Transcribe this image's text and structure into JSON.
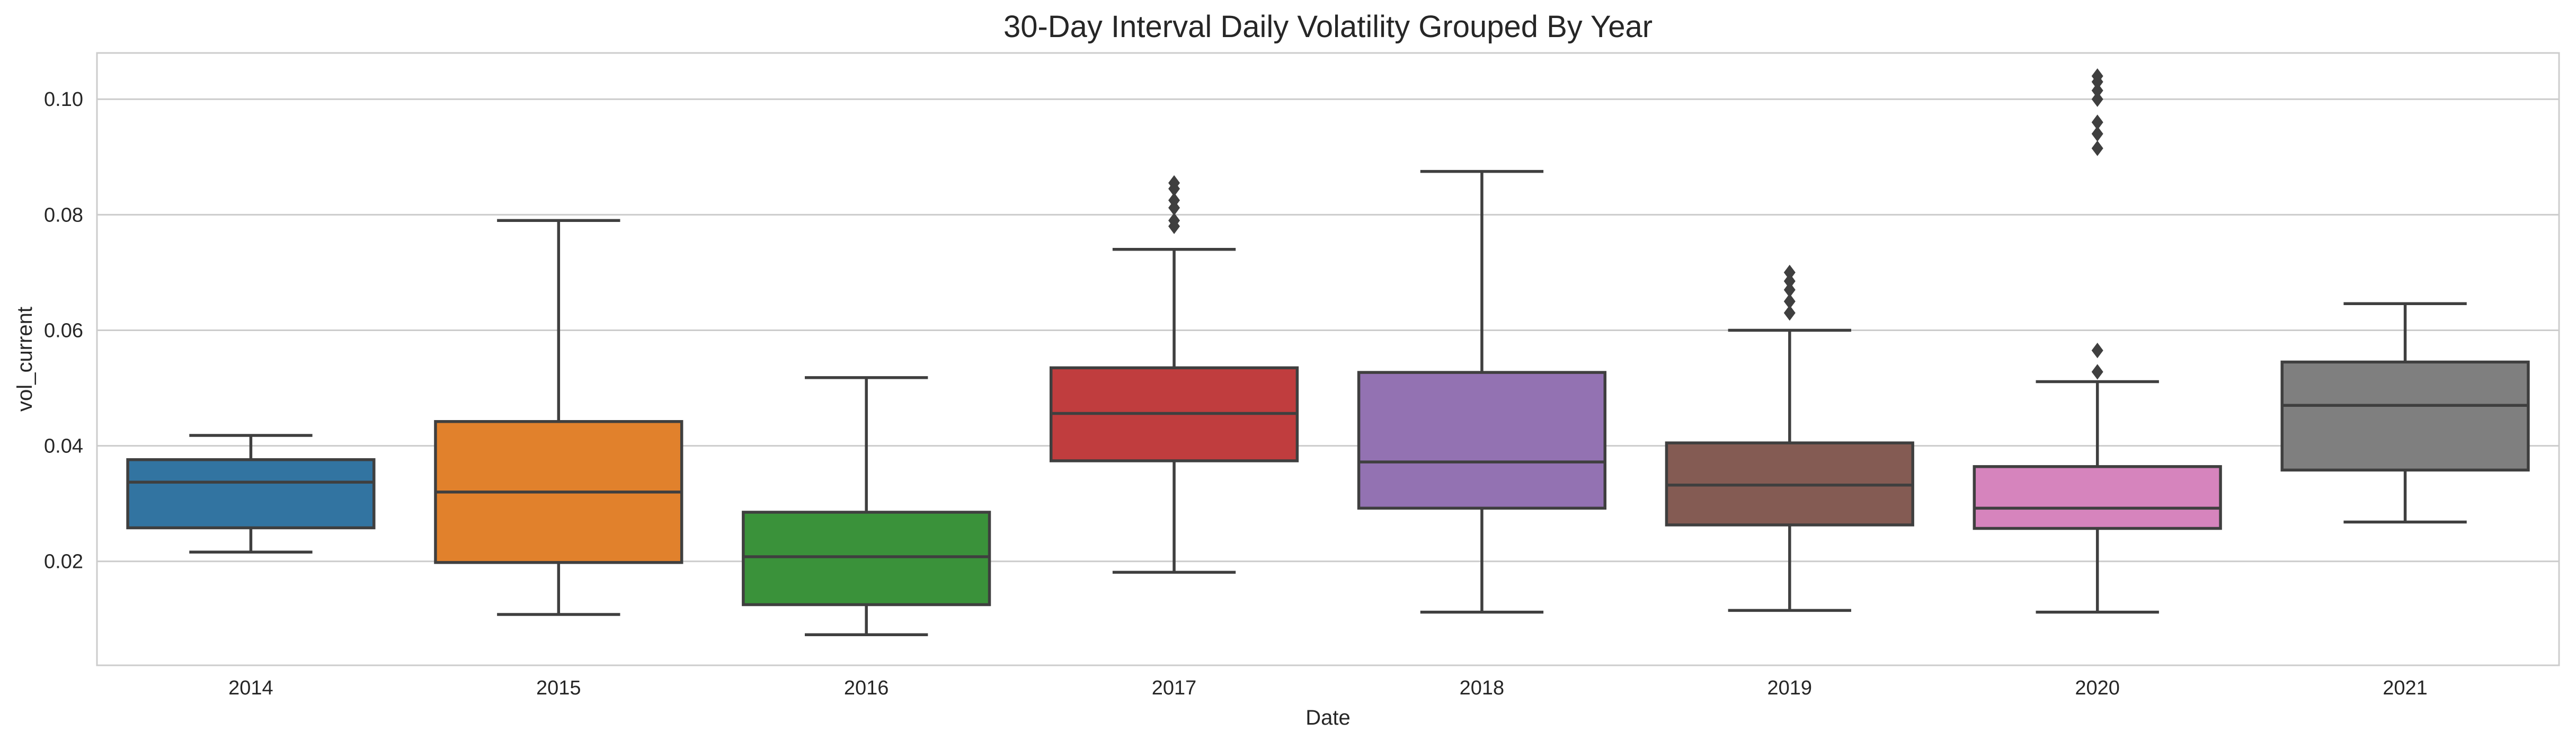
{
  "chart_data": {
    "type": "box",
    "title": "30-Day Interval Daily Volatility Grouped By Year",
    "xlabel": "Date",
    "ylabel": "vol_current",
    "ylim": [
      0.002,
      0.108
    ],
    "yticks": [
      "0.02",
      "0.04",
      "0.06",
      "0.08",
      "0.10"
    ],
    "ytick_values": [
      0.02,
      0.04,
      0.06,
      0.08,
      0.1
    ],
    "grid": "horizontal",
    "categories": [
      "2014",
      "2015",
      "2016",
      "2017",
      "2018",
      "2019",
      "2020",
      "2021"
    ],
    "boxes": [
      {
        "category": "2014",
        "whisker_low": 0.0216,
        "q1": 0.0258,
        "median": 0.0337,
        "q3": 0.0376,
        "whisker_high": 0.0418,
        "outliers": [],
        "color": "#3274a1"
      },
      {
        "category": "2015",
        "whisker_low": 0.0108,
        "q1": 0.0198,
        "median": 0.032,
        "q3": 0.0442,
        "whisker_high": 0.079,
        "outliers": [],
        "color": "#e1812c"
      },
      {
        "category": "2016",
        "whisker_low": 0.0073,
        "q1": 0.0125,
        "median": 0.0208,
        "q3": 0.0285,
        "whisker_high": 0.0518,
        "outliers": [],
        "color": "#3a923a"
      },
      {
        "category": "2017",
        "whisker_low": 0.0181,
        "q1": 0.0374,
        "median": 0.0456,
        "q3": 0.0535,
        "whisker_high": 0.074,
        "outliers": [
          0.078,
          0.079,
          0.0812,
          0.0825,
          0.0845,
          0.0855
        ],
        "color": "#c03d3e"
      },
      {
        "category": "2018",
        "whisker_low": 0.0112,
        "q1": 0.0292,
        "median": 0.0372,
        "q3": 0.0527,
        "whisker_high": 0.0875,
        "outliers": [],
        "color": "#9372b2"
      },
      {
        "category": "2019",
        "whisker_low": 0.0115,
        "q1": 0.0263,
        "median": 0.0332,
        "q3": 0.0405,
        "whisker_high": 0.06,
        "outliers": [
          0.063,
          0.065,
          0.067,
          0.0685,
          0.07
        ],
        "color": "#845b53"
      },
      {
        "category": "2020",
        "whisker_low": 0.0112,
        "q1": 0.0257,
        "median": 0.0292,
        "q3": 0.0364,
        "whisker_high": 0.0511,
        "outliers": [
          0.0528,
          0.0565,
          0.0915,
          0.094,
          0.096,
          0.1,
          0.1015,
          0.103,
          0.104
        ],
        "color": "#d684bd"
      },
      {
        "category": "2021",
        "whisker_low": 0.0268,
        "q1": 0.0358,
        "median": 0.047,
        "q3": 0.0545,
        "whisker_high": 0.0646,
        "outliers": [],
        "color": "#7f7f7f"
      }
    ]
  }
}
